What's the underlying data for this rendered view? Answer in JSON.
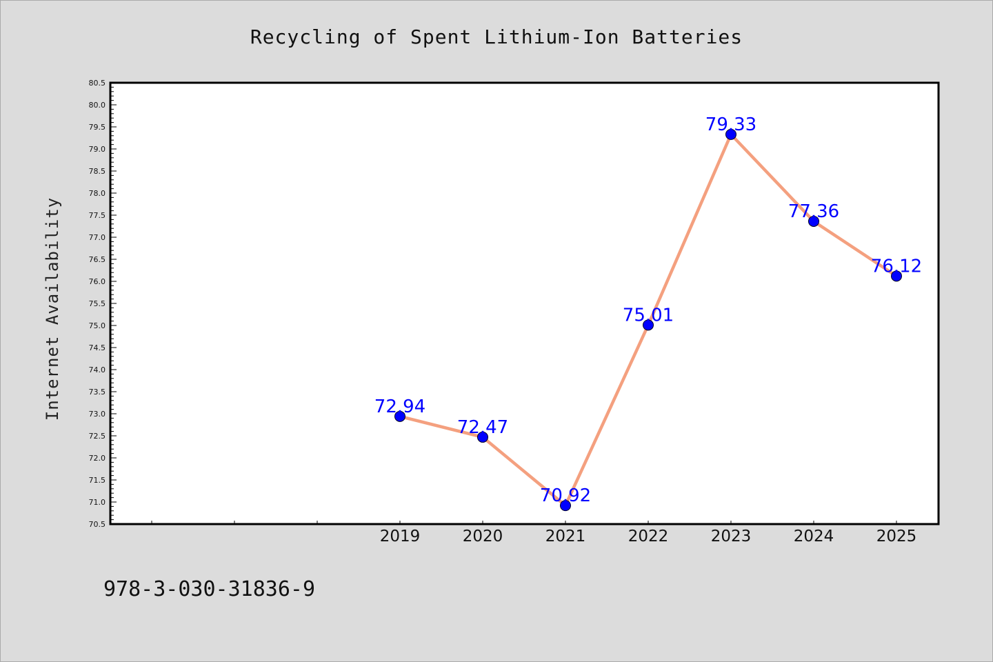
{
  "chart_data": {
    "type": "line",
    "title": "Recycling of Spent Lithium-Ion Batteries",
    "xlabel": "",
    "ylabel": "Internet Availability",
    "x": [
      "2019",
      "2020",
      "2021",
      "2022",
      "2023",
      "2024",
      "2025"
    ],
    "values": [
      72.94,
      72.47,
      70.92,
      75.01,
      79.33,
      77.36,
      76.12
    ],
    "data_labels": [
      "72.94",
      "72.47",
      "70.92",
      "75.01",
      "79.33",
      "77.36",
      "76.12"
    ],
    "ylim": [
      70.5,
      80.5
    ],
    "y_ticks": [
      "70.5",
      "71.0",
      "71.5",
      "72.0",
      "72.5",
      "73.0",
      "73.5",
      "74.0",
      "74.5",
      "75.0",
      "75.5",
      "76.0",
      "76.5",
      "77.0",
      "77.5",
      "78.0",
      "78.5",
      "79.0",
      "79.5",
      "80.0",
      "80.5"
    ],
    "grid": false,
    "line_color": "#f4a07f",
    "marker_color": "#0000ff",
    "label_color": "#0000ff"
  },
  "footer": {
    "isbn": "978-3-030-31836-9"
  }
}
